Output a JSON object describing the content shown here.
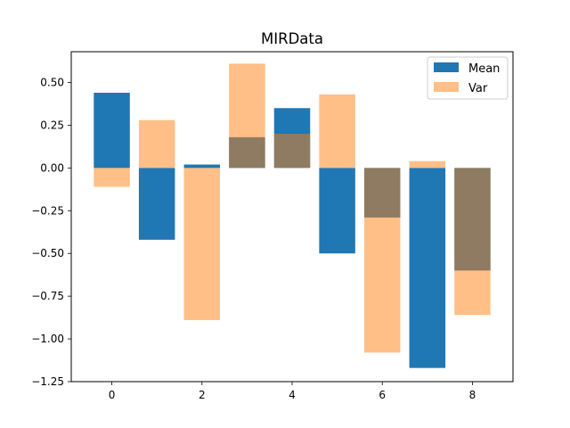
{
  "chart_data": {
    "type": "bar",
    "title": "MIRData",
    "xlabel": "",
    "ylabel": "",
    "x": [
      0,
      1,
      2,
      3,
      4,
      5,
      6,
      7,
      8
    ],
    "series": [
      {
        "name": "Mean",
        "color": "#1f77b4",
        "alpha": 1.0,
        "values": [
          0.44,
          -0.42,
          0.02,
          0.18,
          0.35,
          -0.5,
          -0.29,
          -1.17,
          -0.6
        ]
      },
      {
        "name": "Var",
        "color": "#ff7f0e",
        "alpha": 0.5,
        "values": [
          -0.11,
          0.28,
          -0.89,
          0.61,
          0.2,
          0.43,
          -1.08,
          0.04,
          -0.86
        ]
      }
    ],
    "xlim": [
      -0.9,
      8.9
    ],
    "ylim": [
      -1.25,
      0.68
    ],
    "xticks": [
      0,
      2,
      4,
      6,
      8
    ],
    "xtick_labels": [
      "0",
      "2",
      "4",
      "6",
      "8"
    ],
    "yticks": [
      -1.25,
      -1.0,
      -0.75,
      -0.5,
      -0.25,
      0.0,
      0.25,
      0.5
    ],
    "ytick_labels": [
      "−1.25",
      "−1.00",
      "−0.75",
      "−0.50",
      "−0.25",
      "0.00",
      "0.25",
      "0.50"
    ],
    "bar_width": 0.8,
    "grid": false,
    "legend_position": "top-right"
  }
}
